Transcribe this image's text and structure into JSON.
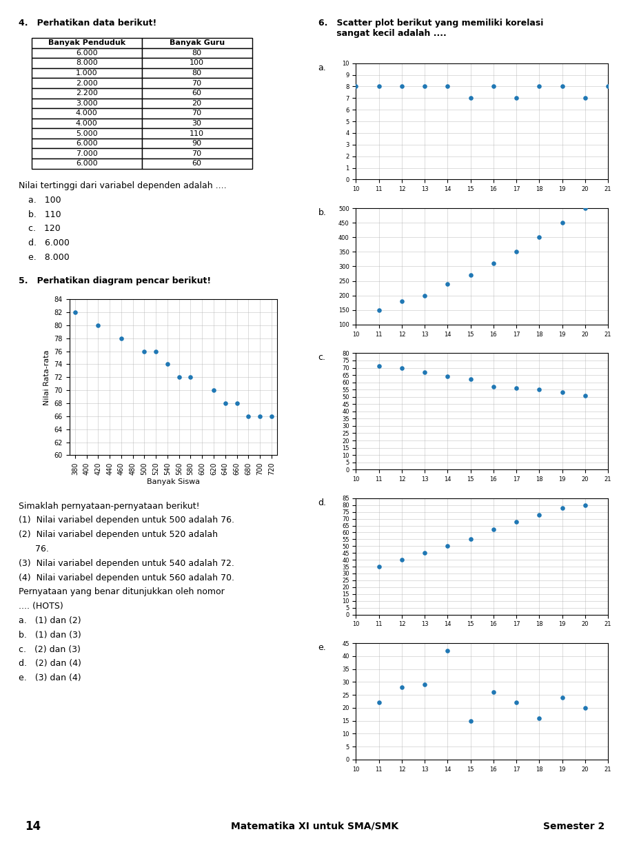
{
  "chart_data": [
    {
      "type": "table",
      "title": "4.   Perhatikan data berikut!",
      "columns": [
        "Banyak Penduduk",
        "Banyak Guru"
      ],
      "rows": [
        [
          "6.000",
          "80"
        ],
        [
          "8.000",
          "100"
        ],
        [
          "1.000",
          "80"
        ],
        [
          "2.000",
          "70"
        ],
        [
          "2.200",
          "60"
        ],
        [
          "3.000",
          "20"
        ],
        [
          "4.000",
          "70"
        ],
        [
          "4.000",
          "30"
        ],
        [
          "5.000",
          "110"
        ],
        [
          "6.000",
          "90"
        ],
        [
          "7.000",
          "70"
        ],
        [
          "6.000",
          "60"
        ]
      ],
      "annotations": [
        "Nilai tertinggi dari variabel dependen adalah ....",
        "a.   100",
        "b.   110",
        "c.   120",
        "d.   6.000",
        "e.   8.000"
      ]
    },
    {
      "type": "scatter",
      "title": "5.   Perhatikan diagram pencar berikut!",
      "x": [
        380,
        420,
        460,
        500,
        520,
        540,
        560,
        580,
        620,
        640,
        660,
        680,
        700,
        720
      ],
      "values": [
        82,
        80,
        78,
        76,
        76,
        74,
        72,
        72,
        70,
        68,
        68,
        66,
        66,
        66
      ],
      "xlabel": "Banyak Siswa",
      "ylabel": "Nilai Rata-rata",
      "xlim": [
        370,
        730
      ],
      "ylim": [
        60,
        84
      ],
      "xticks": [
        380,
        400,
        420,
        440,
        460,
        480,
        500,
        520,
        540,
        560,
        580,
        600,
        620,
        640,
        660,
        680,
        700,
        720
      ],
      "yticks": [
        60,
        62,
        64,
        66,
        68,
        70,
        72,
        74,
        76,
        78,
        80,
        82,
        84
      ],
      "grid": true,
      "annotations": [
        "Simaklah pernyataan-pernyataan berikut!",
        "(1)  Nilai variabel dependen untuk 500 adalah 76.",
        "(2)  Nilai variabel dependen untuk 520 adalah",
        "      76.",
        "(3)  Nilai variabel dependen untuk 540 adalah 72.",
        "(4)  Nilai variabel dependen untuk 560 adalah 70.",
        "Pernyataan yang benar ditunjukkan oleh nomor",
        ".... (HOTS)",
        "a.   (1) dan (2)",
        "b.   (1) dan (3)",
        "c.   (2) dan (3)",
        "d.   (2) dan (4)",
        "e.   (3) dan (4)"
      ]
    },
    {
      "type": "text",
      "title": "6.   Scatter plot berikut yang memiliki korelasi\n      sangat kecil adalah ...."
    },
    {
      "type": "scatter",
      "title": "a.",
      "x": [
        10,
        11,
        12,
        13,
        14,
        15,
        16,
        17,
        18,
        19,
        20,
        21
      ],
      "values": [
        8,
        8,
        8,
        8,
        8,
        7,
        8,
        7,
        8,
        8,
        7,
        8
      ],
      "xlim": [
        10,
        21
      ],
      "ylim": [
        0,
        10
      ],
      "xticks": [
        10,
        11,
        12,
        13,
        14,
        15,
        16,
        17,
        18,
        19,
        20,
        21
      ],
      "yticks": [
        0,
        1,
        2,
        3,
        4,
        5,
        6,
        7,
        8,
        9,
        10
      ],
      "grid": true
    },
    {
      "type": "scatter",
      "title": "b.",
      "x": [
        11,
        12,
        13,
        14,
        15,
        16,
        17,
        18,
        19,
        20
      ],
      "values": [
        150,
        180,
        200,
        240,
        270,
        310,
        350,
        400,
        450,
        500
      ],
      "xlim": [
        10,
        21
      ],
      "ylim": [
        100,
        500
      ],
      "xticks": [
        10,
        11,
        12,
        13,
        14,
        15,
        16,
        17,
        18,
        19,
        20,
        21
      ],
      "yticks": [
        100,
        150,
        200,
        250,
        300,
        350,
        400,
        450,
        500
      ],
      "grid": true
    },
    {
      "type": "scatter",
      "title": "c.",
      "x": [
        11,
        12,
        13,
        14,
        15,
        16,
        17,
        18,
        19,
        20
      ],
      "values": [
        71,
        70,
        67,
        64,
        62,
        57,
        56,
        55,
        53,
        51
      ],
      "xlim": [
        10,
        21
      ],
      "ylim": [
        0,
        80
      ],
      "xticks": [
        10,
        11,
        12,
        13,
        14,
        15,
        16,
        17,
        18,
        19,
        20,
        21
      ],
      "yticks": [
        0,
        5,
        10,
        15,
        20,
        25,
        30,
        35,
        40,
        45,
        50,
        55,
        60,
        65,
        70,
        75,
        80
      ],
      "grid": true
    },
    {
      "type": "scatter",
      "title": "d.",
      "x": [
        11,
        12,
        13,
        14,
        15,
        16,
        17,
        18,
        19,
        20
      ],
      "values": [
        35,
        40,
        45,
        50,
        55,
        62,
        68,
        73,
        78,
        80
      ],
      "xlim": [
        10,
        21
      ],
      "ylim": [
        0,
        85
      ],
      "xticks": [
        10,
        11,
        12,
        13,
        14,
        15,
        16,
        17,
        18,
        19,
        20,
        21
      ],
      "yticks": [
        0,
        5,
        10,
        15,
        20,
        25,
        30,
        35,
        40,
        45,
        50,
        55,
        60,
        65,
        70,
        75,
        80,
        85
      ],
      "grid": true
    },
    {
      "type": "scatter",
      "title": "e.",
      "x": [
        11,
        12,
        13,
        14,
        15,
        16,
        17,
        18,
        19,
        20
      ],
      "values": [
        22,
        28,
        29,
        42,
        15,
        26,
        22,
        16,
        24,
        20
      ],
      "xlim": [
        10,
        21
      ],
      "ylim": [
        0,
        45
      ],
      "xticks": [
        10,
        11,
        12,
        13,
        14,
        15,
        16,
        17,
        18,
        19,
        20,
        21
      ],
      "yticks": [
        0,
        5,
        10,
        15,
        20,
        25,
        30,
        35,
        40,
        45
      ],
      "grid": true
    },
    {
      "type": "text",
      "annotations": [
        "14",
        "Matematika XI untuk SMA/SMK",
        "Semester 2"
      ]
    }
  ]
}
